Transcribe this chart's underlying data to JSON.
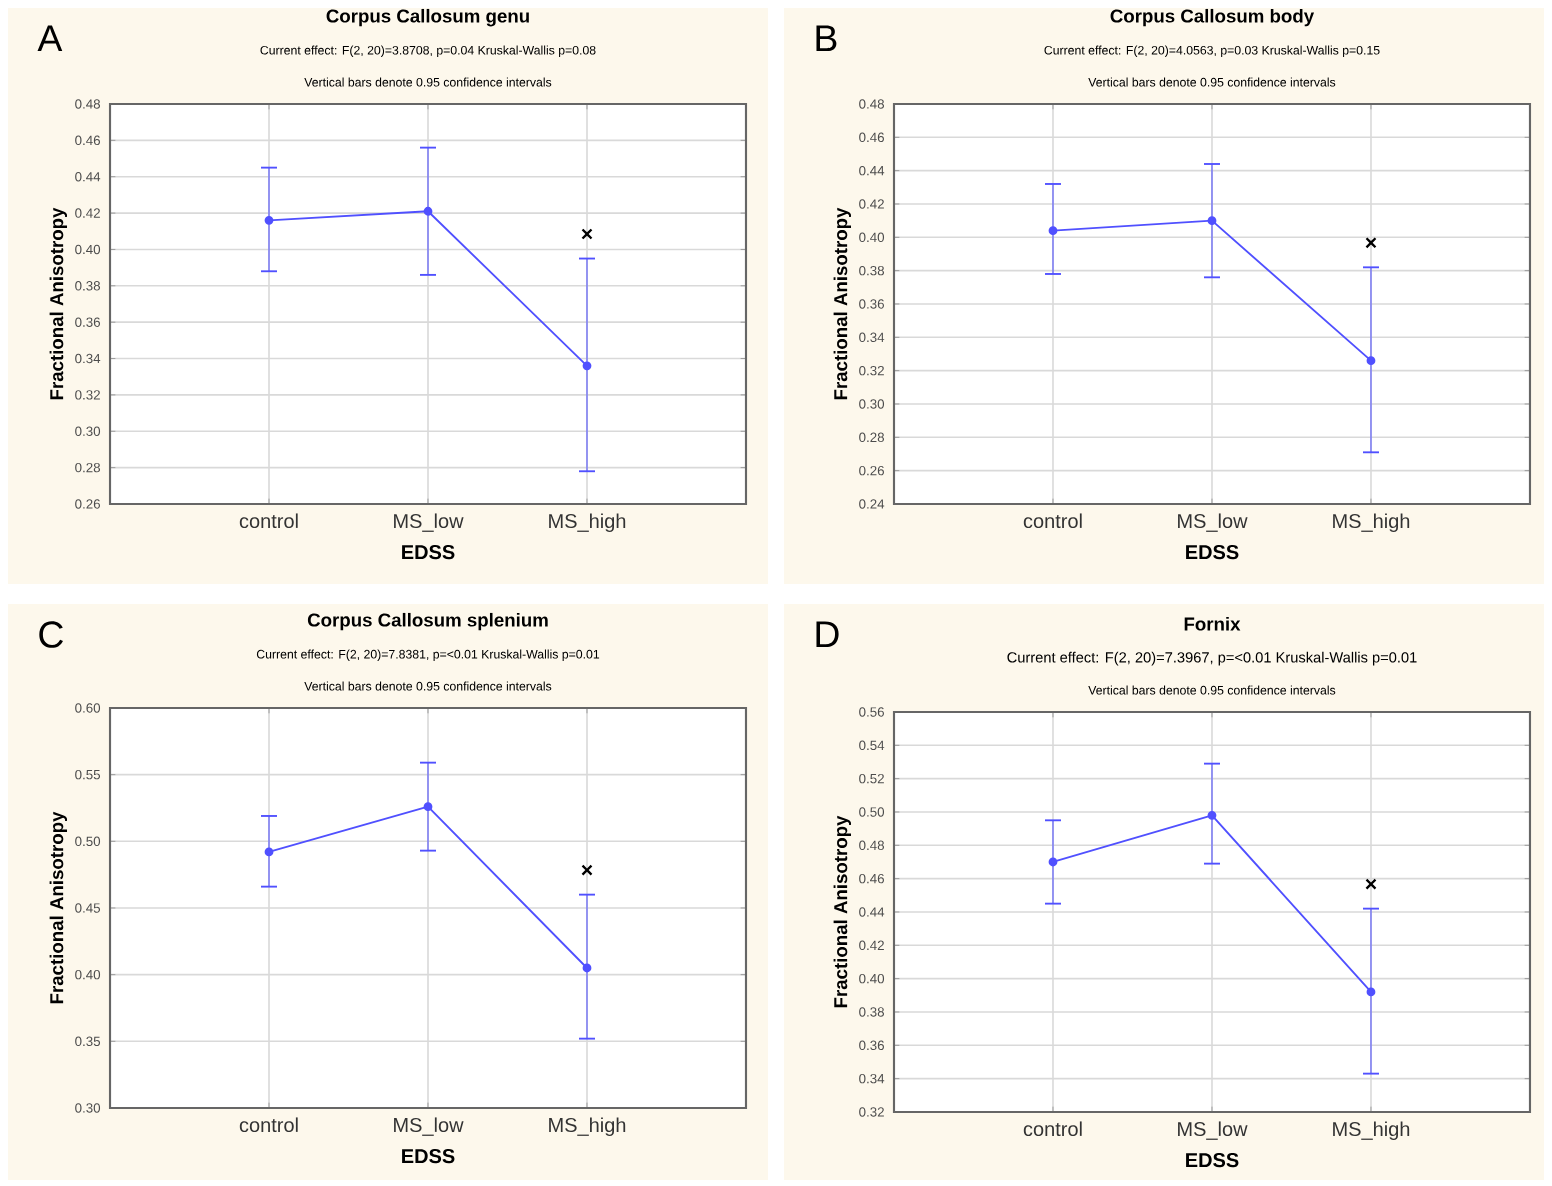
{
  "chart_data": [
    {
      "type": "line",
      "title": "Corpus Callosum genu",
      "subtitle": "Current effect: F(2, 20)=3.8708, p=0.04 Kruskal-Wallis p=0.08",
      "xlabel": "EDSS",
      "ylabel": "Fractional Anisotropy",
      "annotations": [
        "A",
        "Vertical bars denote 0.95 confidence intervals",
        "×"
      ],
      "categories": [
        "control",
        "MS_low",
        "MS_high"
      ],
      "series": [
        {
          "color": "#5050ff",
          "values": [
            0.416,
            0.421,
            0.336
          ],
          "errors": [
            [
              0.388,
              0.445
            ],
            [
              0.386,
              0.456
            ],
            [
              0.278,
              0.395
            ]
          ]
        }
      ],
      "ylim": [
        0.26,
        0.48
      ],
      "yticks": [
        {
          "value": 0.26,
          "label": "0.26"
        },
        {
          "value": 0.28,
          "label": "0.28"
        },
        {
          "value": 0.3,
          "label": "0.30"
        },
        {
          "value": 0.32,
          "label": "0.32"
        },
        {
          "value": 0.34,
          "label": "0.34"
        },
        {
          "value": 0.36,
          "label": "0.36"
        },
        {
          "value": 0.38,
          "label": "0.38"
        },
        {
          "value": 0.4,
          "label": "0.40"
        },
        {
          "value": 0.42,
          "label": "0.42"
        },
        {
          "value": 0.44,
          "label": "0.44"
        },
        {
          "value": 0.46,
          "label": "0.46"
        },
        {
          "value": 0.48,
          "label": "0.48"
        }
      ],
      "grid": true,
      "marker": "circle",
      "line_style": "solid"
    },
    {
      "type": "line",
      "title": "Corpus Callosum body",
      "subtitle": "Current effect: F(2, 20)=4.0563, p=0.03 Kruskal-Wallis p=0.15",
      "xlabel": "EDSS",
      "ylabel": "Fractional Anisotropy",
      "annotations": [
        "B",
        "Vertical bars denote 0.95 confidence intervals",
        "×"
      ],
      "categories": [
        "control",
        "MS_low",
        "MS_high"
      ],
      "series": [
        {
          "color": "#5050ff",
          "values": [
            0.404,
            0.41,
            0.326
          ],
          "errors": [
            [
              0.378,
              0.432
            ],
            [
              0.376,
              0.444
            ],
            [
              0.271,
              0.382
            ]
          ]
        }
      ],
      "ylim": [
        0.24,
        0.48
      ],
      "yticks": [
        {
          "value": 0.24,
          "label": "0.24"
        },
        {
          "value": 0.26,
          "label": "0.26"
        },
        {
          "value": 0.28,
          "label": "0.28"
        },
        {
          "value": 0.3,
          "label": "0.30"
        },
        {
          "value": 0.32,
          "label": "0.32"
        },
        {
          "value": 0.34,
          "label": "0.34"
        },
        {
          "value": 0.36,
          "label": "0.36"
        },
        {
          "value": 0.38,
          "label": "0.38"
        },
        {
          "value": 0.4,
          "label": "0.40"
        },
        {
          "value": 0.42,
          "label": "0.42"
        },
        {
          "value": 0.44,
          "label": "0.44"
        },
        {
          "value": 0.46,
          "label": "0.46"
        },
        {
          "value": 0.48,
          "label": "0.48"
        }
      ],
      "grid": true,
      "marker": "circle",
      "line_style": "solid"
    },
    {
      "type": "line",
      "title": "Corpus Callosum splenium",
      "subtitle": "Current effect: F(2, 20)=7.8381, p=<0.01 Kruskal-Wallis p=0.01",
      "xlabel": "EDSS",
      "ylabel": "Fractional Anisotropy",
      "annotations": [
        "C",
        "Vertical bars denote 0.95 confidence intervals",
        "×"
      ],
      "categories": [
        "control",
        "MS_low",
        "MS_high"
      ],
      "series": [
        {
          "color": "#5050ff",
          "values": [
            0.492,
            0.526,
            0.405
          ],
          "errors": [
            [
              0.466,
              0.519
            ],
            [
              0.493,
              0.559
            ],
            [
              0.352,
              0.46
            ]
          ]
        }
      ],
      "ylim": [
        0.3,
        0.6
      ],
      "yticks": [
        {
          "value": 0.3,
          "label": "0.30"
        },
        {
          "value": 0.35,
          "label": "0.35"
        },
        {
          "value": 0.4,
          "label": "0.40"
        },
        {
          "value": 0.45,
          "label": "0.45"
        },
        {
          "value": 0.5,
          "label": "0.50"
        },
        {
          "value": 0.55,
          "label": "0.55"
        },
        {
          "value": 0.6,
          "label": "0.60"
        }
      ],
      "grid": true,
      "marker": "circle",
      "line_style": "solid"
    },
    {
      "type": "line",
      "title": "Fornix",
      "subtitle": "Current effect: F(2, 20)=7.3967, p=<0.01 Kruskal-Wallis p=0.01",
      "xlabel": "EDSS",
      "ylabel": "Fractional Anisotropy",
      "annotations": [
        "D",
        "Vertical bars denote 0.95 confidence intervals",
        "×"
      ],
      "categories": [
        "control",
        "MS_low",
        "MS_high"
      ],
      "series": [
        {
          "color": "#5050ff",
          "values": [
            0.47,
            0.498,
            0.392
          ],
          "errors": [
            [
              0.445,
              0.495
            ],
            [
              0.469,
              0.529
            ],
            [
              0.343,
              0.442
            ]
          ]
        }
      ],
      "ylim": [
        0.32,
        0.56
      ],
      "yticks": [
        {
          "value": 0.32,
          "label": "0.32"
        },
        {
          "value": 0.34,
          "label": "0.34"
        },
        {
          "value": 0.36,
          "label": "0.36"
        },
        {
          "value": 0.38,
          "label": "0.38"
        },
        {
          "value": 0.4,
          "label": "0.40"
        },
        {
          "value": 0.42,
          "label": "0.42"
        },
        {
          "value": 0.44,
          "label": "0.44"
        },
        {
          "value": 0.46,
          "label": "0.46"
        },
        {
          "value": 0.48,
          "label": "0.48"
        },
        {
          "value": 0.5,
          "label": "0.50"
        },
        {
          "value": 0.52,
          "label": "0.52"
        },
        {
          "value": 0.54,
          "label": "0.54"
        },
        {
          "value": 0.56,
          "label": "0.56"
        }
      ],
      "grid": true,
      "marker": "circle",
      "line_style": "solid"
    }
  ]
}
